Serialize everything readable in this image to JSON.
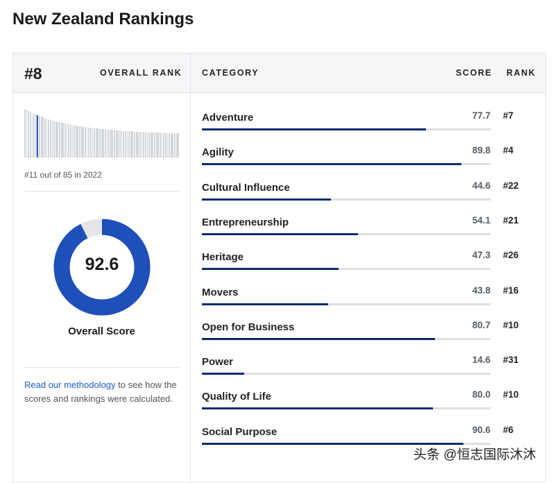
{
  "page_title": "New Zealand Rankings",
  "overall": {
    "rank": "#8",
    "rank_label": "OVERALL RANK",
    "prev_note": "#11 out of 85 in 2022",
    "highlight_position": 8,
    "total_countries": 85,
    "score": "92.6",
    "score_value": 92.6,
    "score_label": "Overall Score"
  },
  "methodology": {
    "link": "Read our methodology",
    "rest": " to see how the scores and rankings were calculated."
  },
  "table": {
    "headers": {
      "category": "CATEGORY",
      "score": "SCORE",
      "rank": "RANK"
    },
    "rows": [
      {
        "category": "Adventure",
        "score": "77.7",
        "rank": "#7"
      },
      {
        "category": "Agility",
        "score": "89.8",
        "rank": "#4"
      },
      {
        "category": "Cultural Influence",
        "score": "44.6",
        "rank": "#22"
      },
      {
        "category": "Entrepreneurship",
        "score": "54.1",
        "rank": "#21"
      },
      {
        "category": "Heritage",
        "score": "47.3",
        "rank": "#26"
      },
      {
        "category": "Movers",
        "score": "43.8",
        "rank": "#16"
      },
      {
        "category": "Open for Business",
        "score": "80.7",
        "rank": "#10"
      },
      {
        "category": "Power",
        "score": "14.6",
        "rank": "#31"
      },
      {
        "category": "Quality of Life",
        "score": "80.0",
        "rank": "#10"
      },
      {
        "category": "Social Purpose",
        "score": "90.6",
        "rank": "#6"
      }
    ]
  },
  "colors": {
    "accent": "#1f5bd6",
    "bar_fill": "#0d2a6e",
    "track": "#dcdfe3"
  },
  "watermark": "头条 @恒志国际沐沐"
}
